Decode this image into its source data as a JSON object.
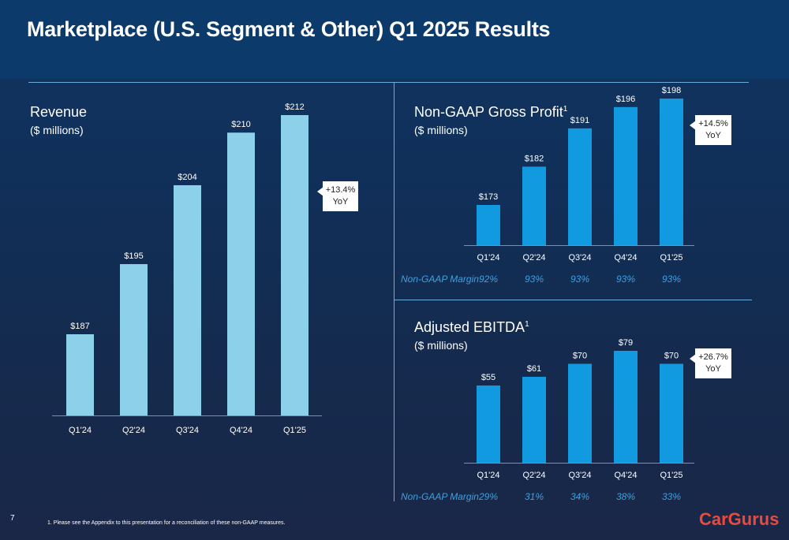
{
  "title": "Marketplace (U.S. Segment & Other) Q1 2025 Results",
  "page_number": "7",
  "footnote": "1.    Please see the Appendix to this presentation for a reconciliation of these non-GAAP measures.",
  "logo": "CarGurus",
  "colors": {
    "revenue_bar": "#8dd0ea",
    "blue_bar": "#129ae0",
    "margin_text": "#3da1e0"
  },
  "revenue": {
    "title": "Revenue",
    "subtitle": "($ millions)",
    "callout_line1": "+13.4%",
    "callout_line2": "YoY"
  },
  "gross_profit": {
    "title": "Non-GAAP Gross Profit",
    "sup": "1",
    "subtitle": "($ millions)",
    "callout_line1": "+14.5%",
    "callout_line2": "YoY",
    "margin_label": "Non-GAAP Margin",
    "margins": [
      "92%",
      "93%",
      "93%",
      "93%",
      "93%"
    ]
  },
  "ebitda": {
    "title": "Adjusted EBITDA",
    "sup": "1",
    "subtitle": "($ millions)",
    "callout_line1": "+26.7%",
    "callout_line2": "YoY",
    "margin_label": "Non-GAAP Margin",
    "margins": [
      "29%",
      "31%",
      "34%",
      "38%",
      "33%"
    ]
  },
  "chart_data": [
    {
      "type": "bar",
      "title": "Revenue",
      "ylabel": "($ millions)",
      "categories": [
        "Q1'24",
        "Q2'24",
        "Q3'24",
        "Q4'24",
        "Q1'25"
      ],
      "values": [
        187,
        195,
        204,
        210,
        212
      ],
      "labels": [
        "$187",
        "$195",
        "$204",
        "$210",
        "$212"
      ]
    },
    {
      "type": "bar",
      "title": "Non-GAAP Gross Profit",
      "ylabel": "($ millions)",
      "categories": [
        "Q1'24",
        "Q2'24",
        "Q3'24",
        "Q4'24",
        "Q1'25"
      ],
      "values": [
        173,
        182,
        191,
        196,
        198
      ],
      "labels": [
        "$173",
        "$182",
        "$191",
        "$196",
        "$198"
      ]
    },
    {
      "type": "bar",
      "title": "Adjusted EBITDA",
      "ylabel": "($ millions)",
      "categories": [
        "Q1'24",
        "Q2'24",
        "Q3'24",
        "Q4'24",
        "Q1'25"
      ],
      "values": [
        55,
        61,
        70,
        79,
        70
      ],
      "labels": [
        "$55",
        "$61",
        "$70",
        "$79",
        "$70"
      ]
    }
  ]
}
